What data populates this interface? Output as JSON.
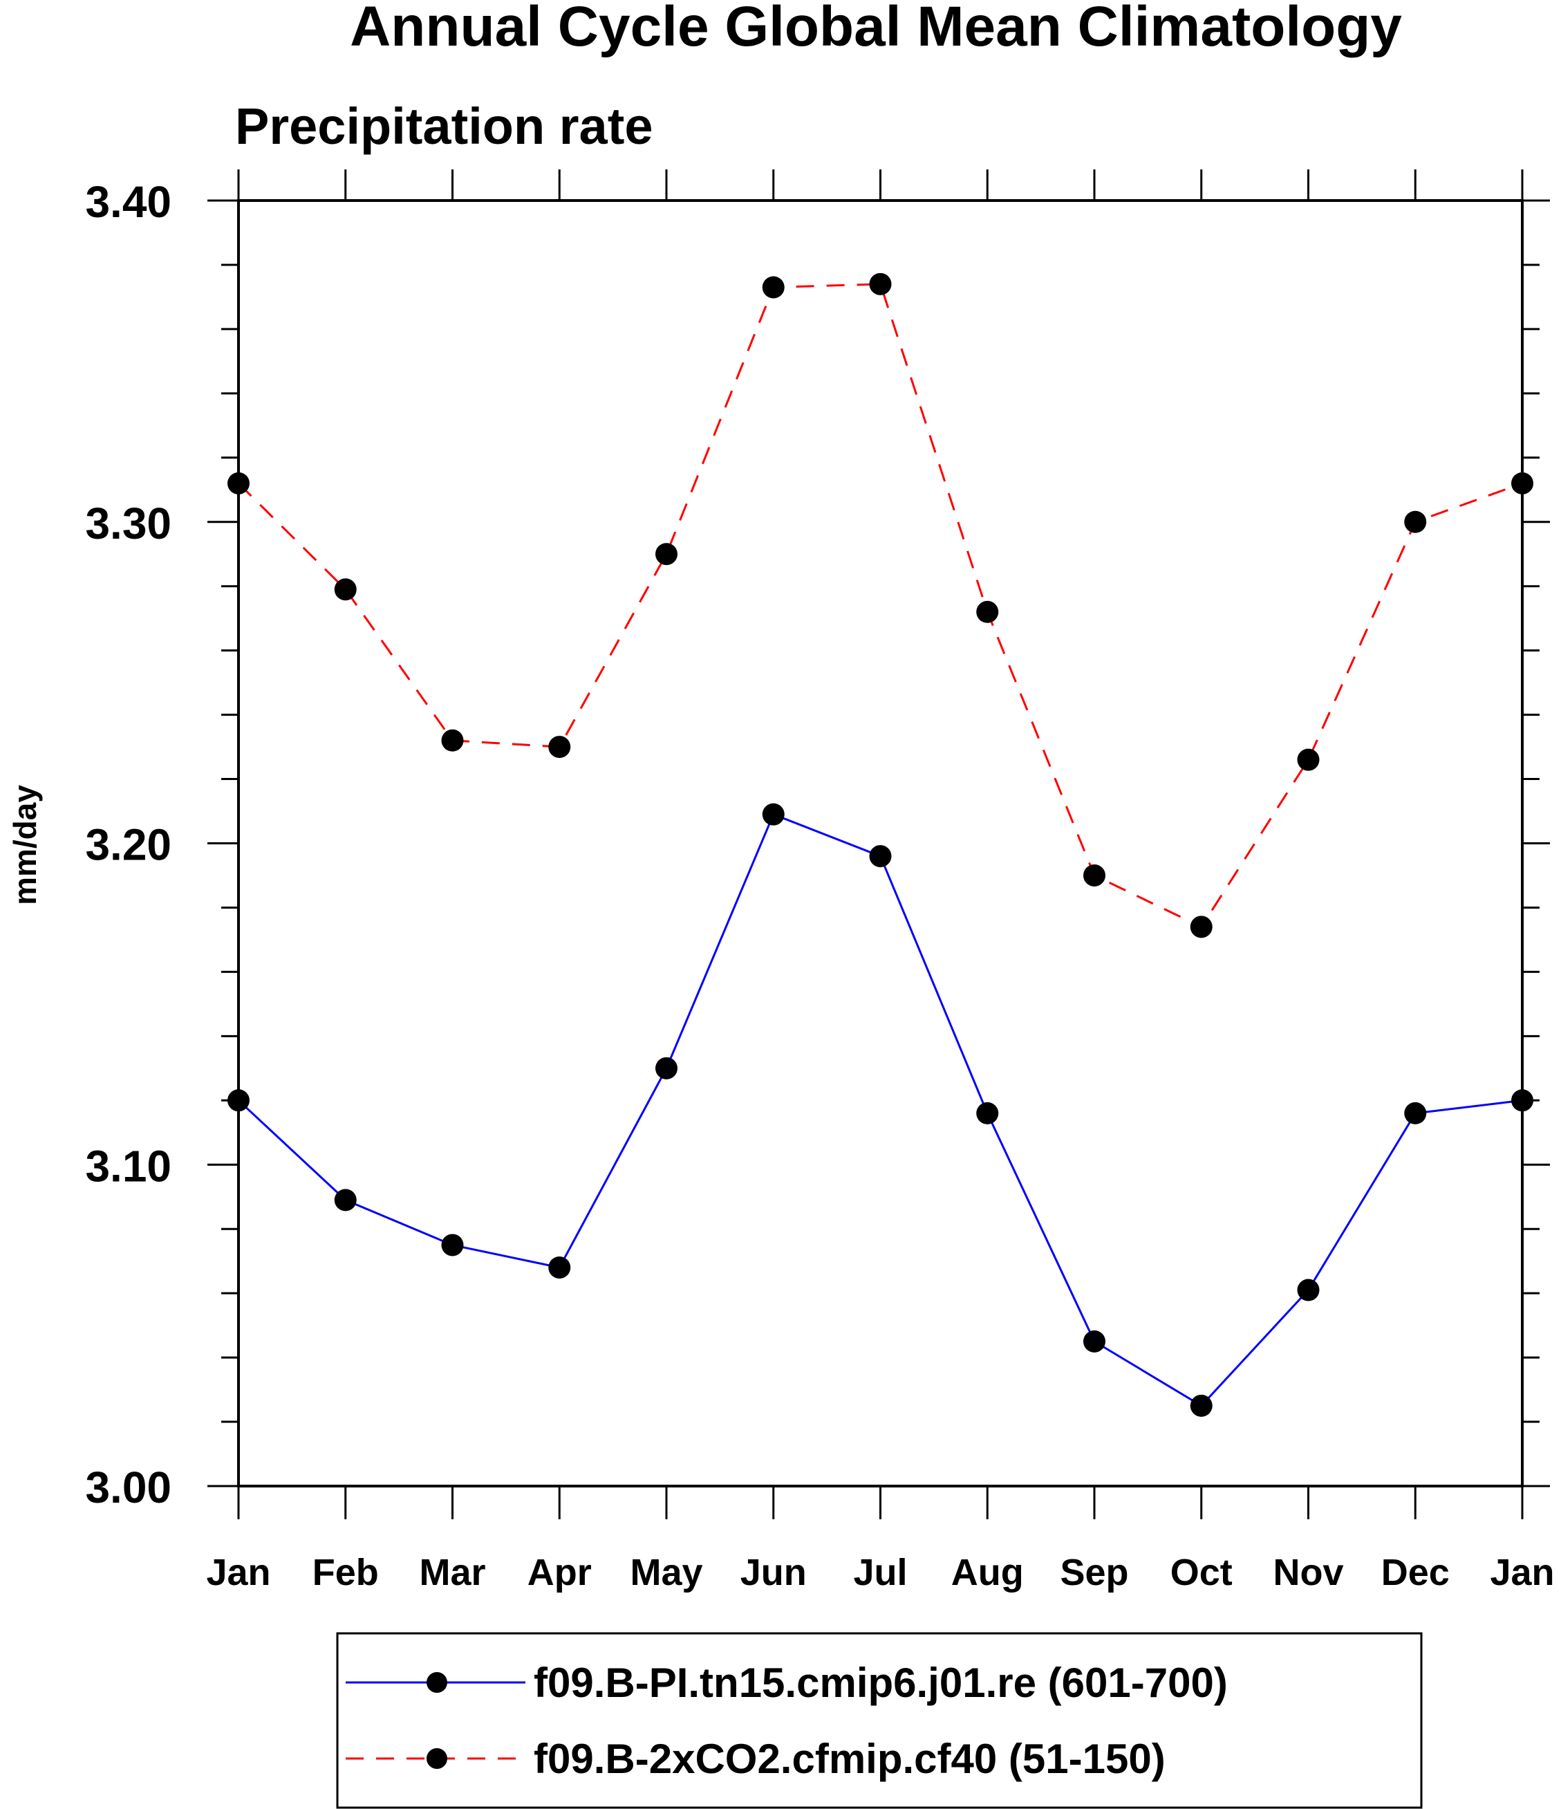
{
  "chart_data": {
    "type": "line",
    "title": "Annual Cycle Global Mean Climatology",
    "subtitle": "Precipitation rate",
    "xlabel": "",
    "ylabel": "mm/day",
    "categories": [
      "Jan",
      "Feb",
      "Mar",
      "Apr",
      "May",
      "Jun",
      "Jul",
      "Aug",
      "Sep",
      "Oct",
      "Nov",
      "Dec",
      "Jan"
    ],
    "ylim": [
      3.0,
      3.4
    ],
    "yticks": [
      3.0,
      3.1,
      3.2,
      3.3,
      3.4
    ],
    "ytick_labels": [
      "3.00",
      "3.10",
      "3.20",
      "3.30",
      "3.40"
    ],
    "y_minor_step": 0.02,
    "grid": false,
    "legend_position": "bottom",
    "series": [
      {
        "name": "f09.B-PI.tn15.cmip6.j01.re (601-700)",
        "color": "#0000ff",
        "style": "solid",
        "values": [
          3.12,
          3.089,
          3.075,
          3.068,
          3.13,
          3.209,
          3.196,
          3.116,
          3.045,
          3.025,
          3.061,
          3.116,
          3.12
        ]
      },
      {
        "name": "f09.B-2xCO2.cfmip.cf40 (51-150)",
        "color": "#ff0000",
        "style": "dashed",
        "values": [
          3.312,
          3.279,
          3.232,
          3.23,
          3.29,
          3.373,
          3.374,
          3.272,
          3.19,
          3.174,
          3.226,
          3.3,
          3.312
        ]
      }
    ]
  }
}
